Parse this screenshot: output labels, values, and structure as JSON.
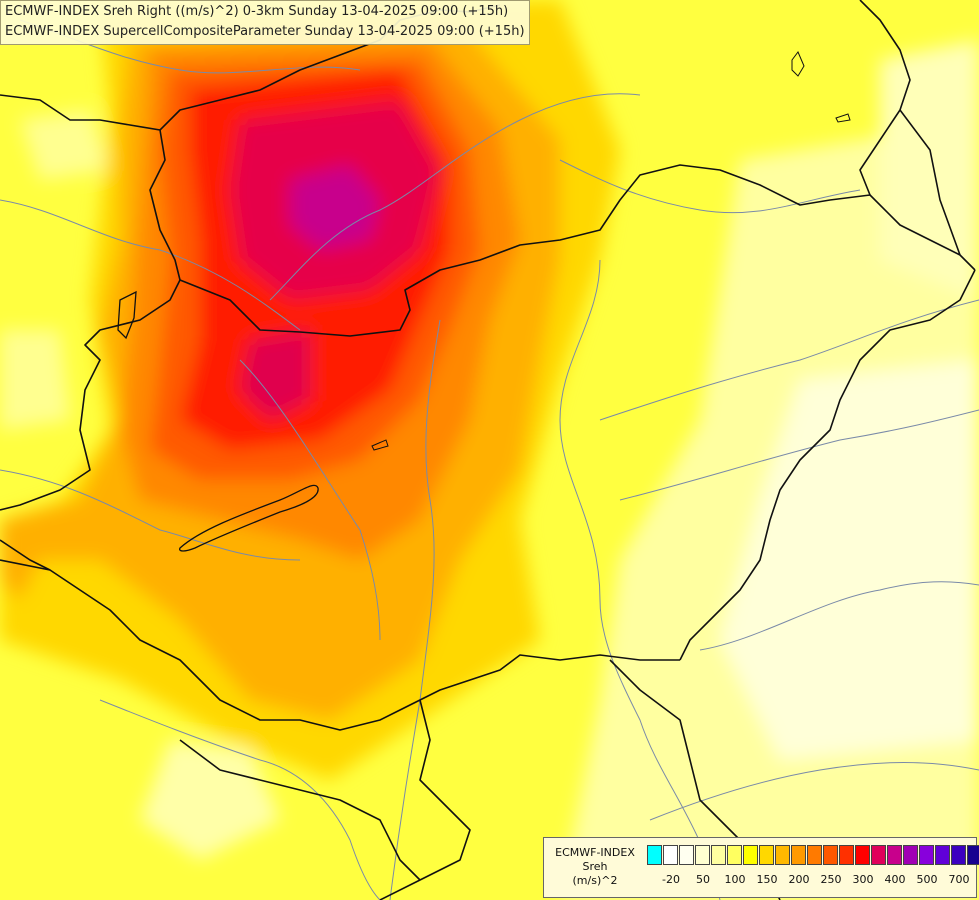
{
  "header": {
    "line1": "ECMWF-INDEX Sreh Right ((m/s)^2) 0-3km Sunday 13-04-2025 09:00 (+15h)",
    "line2": "ECMWF-INDEX SupercellCompositeParameter Sunday 13-04-2025 09:00 (+15h)"
  },
  "legend": {
    "line1": "ECMWF-INDEX",
    "line2": "Sreh",
    "line3": "(m/s)^2",
    "colors": [
      "#00ffff",
      "#ffffff",
      "#fffff0",
      "#ffffd0",
      "#ffffa0",
      "#ffff60",
      "#ffff00",
      "#ffd800",
      "#ffb800",
      "#ff9a00",
      "#ff7a00",
      "#ff5800",
      "#ff3000",
      "#ff0000",
      "#e0005a",
      "#c8008c",
      "#a000b4",
      "#8800dc",
      "#6000d8",
      "#3c00c0",
      "#180090"
    ],
    "ticks": [
      {
        "label": "-20",
        "index": 1
      },
      {
        "label": "50",
        "index": 3
      },
      {
        "label": "100",
        "index": 5
      },
      {
        "label": "150",
        "index": 7
      },
      {
        "label": "200",
        "index": 9
      },
      {
        "label": "250",
        "index": 11
      },
      {
        "label": "300",
        "index": 13
      },
      {
        "label": "400",
        "index": 15
      },
      {
        "label": "500",
        "index": 17
      },
      {
        "label": "700",
        "index": 19
      }
    ]
  }
}
